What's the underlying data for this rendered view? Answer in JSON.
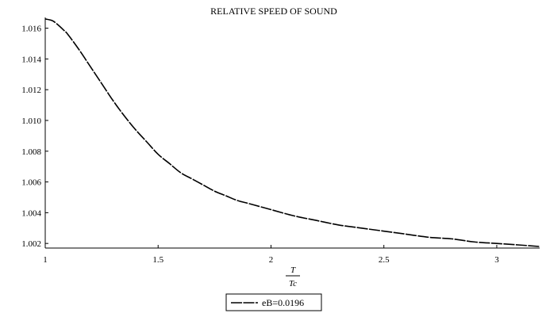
{
  "chart_data": {
    "type": "line",
    "title": "RELATIVE SPEED OF SOUND",
    "xlabel": {
      "numerator": "T",
      "denominator": "Tc"
    },
    "ylabel": "",
    "xlim": [
      1.0,
      3.19
    ],
    "ylim": [
      1.0017,
      1.0167
    ],
    "x_ticks": [
      1,
      1.5,
      2,
      2.5,
      3
    ],
    "x_tick_labels": [
      "1",
      "1.5",
      "2",
      "2.5",
      "3"
    ],
    "y_ticks": [
      1.002,
      1.004,
      1.006,
      1.008,
      1.01,
      1.012,
      1.014,
      1.016
    ],
    "y_tick_labels": [
      "1.002",
      "1.004",
      "1.006",
      "1.008",
      "1.010",
      "1.012",
      "1.014",
      "1.016"
    ],
    "grid": false,
    "legend_position": "bottom-center",
    "series": [
      {
        "name": "eB=0.0196",
        "line_style": "dashed",
        "color": "#000000",
        "x": [
          1.0,
          1.03,
          1.05,
          1.08,
          1.1,
          1.15,
          1.2,
          1.25,
          1.3,
          1.35,
          1.4,
          1.45,
          1.5,
          1.55,
          1.6,
          1.65,
          1.7,
          1.75,
          1.8,
          1.85,
          1.9,
          1.95,
          2.0,
          2.1,
          2.2,
          2.3,
          2.4,
          2.5,
          2.6,
          2.7,
          2.8,
          2.9,
          3.0,
          3.1,
          3.19
        ],
        "y": [
          1.0166,
          1.0165,
          1.0163,
          1.0159,
          1.0156,
          1.0146,
          1.0135,
          1.0124,
          1.0113,
          1.0103,
          1.0094,
          1.0086,
          1.0078,
          1.0072,
          1.0066,
          1.0062,
          1.0058,
          1.0054,
          1.0051,
          1.0048,
          1.0046,
          1.0044,
          1.0042,
          1.0038,
          1.0035,
          1.0032,
          1.003,
          1.0028,
          1.0026,
          1.0024,
          1.0023,
          1.0021,
          1.002,
          1.0019,
          1.0018
        ]
      }
    ]
  }
}
